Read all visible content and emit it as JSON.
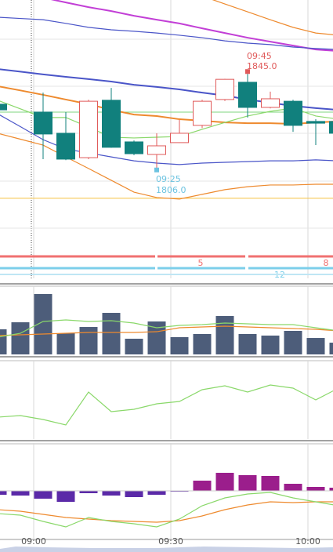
{
  "chart_data": [
    {
      "type": "candlestick",
      "ylim": [
        1762,
        1875
      ],
      "open": [
        1832.7,
        null,
        1829.5,
        1820.9,
        1811.0,
        1834.3,
        1817.4,
        1812.3,
        1817.1,
        1824.1,
        1834.6,
        1841.6,
        1831.4,
        1833.9,
        1825.7,
        1825.7
      ],
      "high": [
        1834.0,
        null,
        1837.4,
        1829.5,
        1834.5,
        1839.3,
        1818.0,
        1820.9,
        1826.3,
        1834.5,
        1843.0,
        1845.0,
        1837.8,
        1834.5,
        1826.6,
        1826.0
      ],
      "low": [
        1829.0,
        null,
        1810.4,
        1810.0,
        1810.4,
        1815.0,
        1812.0,
        1806.0,
        1817.0,
        1823.0,
        1834.0,
        1827.3,
        1831.0,
        1821.5,
        1816.1,
        1820.0
      ],
      "close": [
        1830.4,
        null,
        1820.6,
        1810.4,
        1833.9,
        1815.2,
        1812.6,
        1815.8,
        1820.9,
        1833.9,
        1842.8,
        1831.4,
        1834.9,
        1824.1,
        1825.0,
        1820.9
      ],
      "up_color": "#e05a5a",
      "down_color": "#11807d",
      "high_label": {
        "time": "09:45",
        "price": "1845.0",
        "color": "#e05a5a"
      },
      "low_label": {
        "time": "09:25",
        "price": "1806.0",
        "color": "#6cc3e0"
      },
      "ref_lines": [
        {
          "value": 1794.5,
          "color": "#f5c242"
        },
        {
          "value": 1829.5,
          "color": "#7fd67f"
        }
      ],
      "overlays": [
        {
          "color": "#c23fd6",
          "values": [
            1881.4,
            1878.7,
            1876.0,
            1874.0,
            1872.1,
            1870.5,
            1868.6,
            1867.0,
            1865.5,
            1863.5,
            1861.6,
            1859.7,
            1858.1,
            1856.5,
            1854.9,
            1854.3
          ]
        },
        {
          "color": "#4a55c8",
          "values": [
            1847.0,
            1845.9,
            1844.8,
            1843.8,
            1842.9,
            1841.9,
            1840.6,
            1839.7,
            1838.7,
            1837.4,
            1836.2,
            1834.6,
            1833.3,
            1832.0,
            1831.1,
            1830.4
          ]
        },
        {
          "color": "#ee8a2e",
          "values": [
            1840.0,
            1838.3,
            1836.5,
            1834.6,
            1832.7,
            1830.4,
            1828.5,
            1827.9,
            1826.6,
            1826.0,
            1825.3,
            1825.0,
            1825.0,
            1824.7,
            1825.3,
            1825.7
          ]
        },
        {
          "color": "#8ad86a",
          "values": [
            1834.3,
            1830.8,
            1827.3,
            1827.3,
            1823.4,
            1819.3,
            1819.0,
            1819.3,
            1819.6,
            1822.5,
            1825.3,
            1827.9,
            1829.8,
            1831.1,
            1827.9,
            1826.6
          ]
        },
        {
          "color": "#4a55c8",
          "values": [
            1868.0,
            1867.5,
            1867.0,
            1865.5,
            1863.9,
            1862.9,
            1862.3,
            1861.6,
            1860.7,
            1859.7,
            1858.4,
            1857.5,
            1856.9,
            1855.9,
            1855.3,
            1854.9
          ]
        },
        {
          "color": "#4a55c8",
          "values": [
            1828.8,
            1823.6,
            1818.3,
            1814.5,
            1812.9,
            1811.3,
            1809.7,
            1808.8,
            1808.2,
            1808.8,
            1809.1,
            1809.4,
            1809.7,
            1809.7,
            1810.1,
            1809.7
          ]
        },
        {
          "color": "#ee8a2e",
          "values": [
            1820.9,
            1818.5,
            1816.1,
            1811.3,
            1806.6,
            1801.8,
            1797.0,
            1794.8,
            1794.2,
            1796.1,
            1798.0,
            1799.2,
            1799.9,
            1799.9,
            1800.2,
            1800.2
          ]
        },
        {
          "color": "#ee8a2e",
          "values": [
            1894.1,
            1893.3,
            1892.5,
            1890.9,
            1889.3,
            1887.7,
            1886.1,
            1884.5,
            1881.4,
            1876.6,
            1873.4,
            1870.2,
            1867.0,
            1863.9,
            1861.6,
            1860.7
          ]
        }
      ],
      "signal_bands": [
        {
          "color": "#f07070",
          "labels": [
            "5",
            "8"
          ]
        },
        {
          "color": "#7ccfea",
          "labels": [
            "12"
          ]
        }
      ],
      "x_labels": [
        "09:00",
        "09:30",
        "10:00"
      ]
    },
    {
      "type": "bar",
      "ylim": [
        0,
        100
      ],
      "color": "#4d5d7a",
      "values": [
        36.8,
        47.1,
        88.5,
        31.0,
        40.2,
        60.9,
        23.0,
        48.3,
        25.3,
        29.9,
        56.3,
        29.9,
        27.6,
        34.5,
        24.1,
        17.2
      ],
      "overlays": [
        {
          "color": "#ee8a2e",
          "values": [
            27.6,
            28.7,
            29.9,
            31.0,
            32.2,
            32.2,
            32.2,
            33.3,
            39.1,
            40.2,
            41.4,
            40.2,
            39.1,
            37.9,
            36.8,
            34.5
          ]
        },
        {
          "color": "#8ad86a",
          "values": [
            25.3,
            31.0,
            48.3,
            50.6,
            48.3,
            49.4,
            46.0,
            39.1,
            42.5,
            43.7,
            46.0,
            44.8,
            43.7,
            43.7,
            39.1,
            34.5
          ]
        }
      ]
    },
    {
      "type": "line",
      "ylim": [
        0,
        100
      ],
      "overlays": [
        {
          "color": "#8ad86a",
          "values": [
            28,
            30,
            25,
            18,
            60,
            35,
            38,
            45,
            48,
            63,
            68,
            60,
            69,
            65,
            50,
            65
          ]
        }
      ]
    },
    {
      "type": "bar",
      "ylim": [
        -61,
        61
      ],
      "pos_color": "#9b1e8c",
      "neg_color": "#5b2aa8",
      "values": [
        -5,
        -6,
        -10,
        -14,
        -3,
        -6,
        -8,
        -5,
        -1,
        13,
        23,
        20,
        19,
        9,
        5,
        4
      ],
      "overlays": [
        {
          "color": "#ee8a2e",
          "values": [
            -24,
            -26,
            -30,
            -34,
            -36,
            -38,
            -39,
            -40,
            -38,
            -32,
            -24,
            -18,
            -14,
            -15,
            -14,
            -14
          ]
        },
        {
          "color": "#8ad86a",
          "values": [
            -29,
            -31,
            -39,
            -46,
            -34,
            -39,
            -42,
            -46,
            -36,
            -19,
            -9,
            -4,
            -2,
            -9,
            -14,
            -19
          ]
        }
      ]
    }
  ]
}
